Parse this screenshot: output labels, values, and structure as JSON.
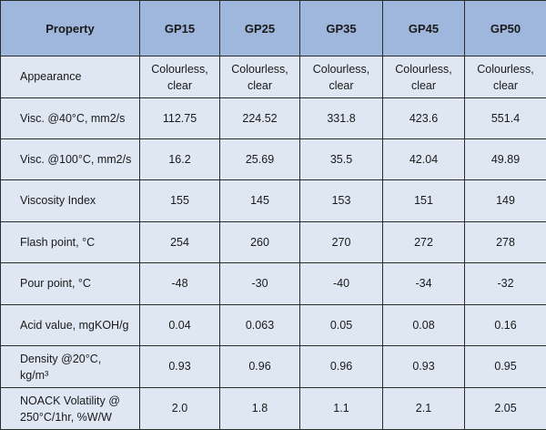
{
  "table": {
    "header": {
      "property_label": "Property",
      "grades": [
        "GP15",
        "GP25",
        "GP35",
        "GP45",
        "GP50"
      ]
    },
    "rows": [
      {
        "property_lines": [
          "Appearance"
        ],
        "values": [
          [
            "Colourless,",
            "clear"
          ],
          [
            "Colourless,",
            "clear"
          ],
          [
            "Colourless,",
            "clear"
          ],
          [
            "Colourless,",
            "clear"
          ],
          [
            "Colourless,",
            "clear"
          ]
        ]
      },
      {
        "property_lines": [
          "Visc. @40°C, mm2/s"
        ],
        "values": [
          [
            "112.75"
          ],
          [
            "224.52"
          ],
          [
            "331.8"
          ],
          [
            "423.6"
          ],
          [
            "551.4"
          ]
        ]
      },
      {
        "property_lines": [
          "Visc. @100°C, mm2/s"
        ],
        "values": [
          [
            "16.2"
          ],
          [
            "25.69"
          ],
          [
            "35.5"
          ],
          [
            "42.04"
          ],
          [
            "49.89"
          ]
        ]
      },
      {
        "property_lines": [
          "Viscosity Index"
        ],
        "values": [
          [
            "155"
          ],
          [
            "145"
          ],
          [
            "153"
          ],
          [
            "151"
          ],
          [
            "149"
          ]
        ]
      },
      {
        "property_lines": [
          "Flash point, °C"
        ],
        "values": [
          [
            "254"
          ],
          [
            "260"
          ],
          [
            "270"
          ],
          [
            "272"
          ],
          [
            "278"
          ]
        ]
      },
      {
        "property_lines": [
          "Pour point, °C"
        ],
        "values": [
          [
            "-48"
          ],
          [
            "-30"
          ],
          [
            "-40"
          ],
          [
            "-34"
          ],
          [
            "-32"
          ]
        ]
      },
      {
        "property_lines": [
          "Acid value, mgKOH/g"
        ],
        "values": [
          [
            "0.04"
          ],
          [
            "0.063"
          ],
          [
            "0.05"
          ],
          [
            "0.08"
          ],
          [
            "0.16"
          ]
        ]
      },
      {
        "property_lines": [
          "Density @20°C,",
          "kg/m³"
        ],
        "values": [
          [
            "0.93"
          ],
          [
            "0.96"
          ],
          [
            "0.96"
          ],
          [
            "0.93"
          ],
          [
            "0.95"
          ]
        ]
      },
      {
        "property_lines": [
          "NOACK Volatility @",
          "250°C/1hr, %W/W"
        ],
        "values": [
          [
            "2.0"
          ],
          [
            "1.8"
          ],
          [
            "1.1"
          ],
          [
            "2.1"
          ],
          [
            "2.05"
          ]
        ]
      }
    ],
    "colors": {
      "header_background": "#9fb7dc",
      "body_background": "#dfe7f3",
      "border": "#2b2b2b",
      "text": "#1a1a1a"
    }
  }
}
